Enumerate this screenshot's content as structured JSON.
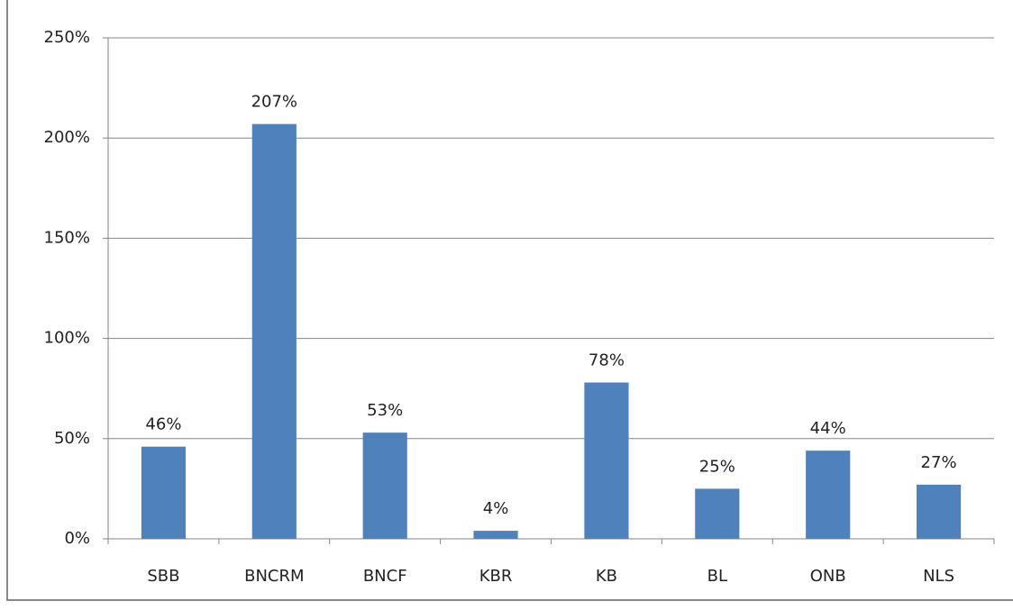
{
  "chart_data": {
    "type": "bar",
    "categories": [
      "SBB",
      "BNCRM",
      "BNCF",
      "KBR",
      "KB",
      "BL",
      "ONB",
      "NLS"
    ],
    "values": [
      46,
      207,
      53,
      4,
      78,
      25,
      44,
      27
    ],
    "value_labels": [
      "46%",
      "207%",
      "53%",
      "4%",
      "78%",
      "25%",
      "44%",
      "27%"
    ],
    "color": "#4f81bd",
    "ylim": [
      0,
      250
    ],
    "yticks": [
      {
        "value": 0,
        "label": "0%"
      },
      {
        "value": 50,
        "label": "50%"
      },
      {
        "value": 100,
        "label": "100%"
      },
      {
        "value": 150,
        "label": "150%"
      },
      {
        "value": 200,
        "label": "200%"
      },
      {
        "value": 250,
        "label": "250%"
      }
    ],
    "grid": true
  }
}
